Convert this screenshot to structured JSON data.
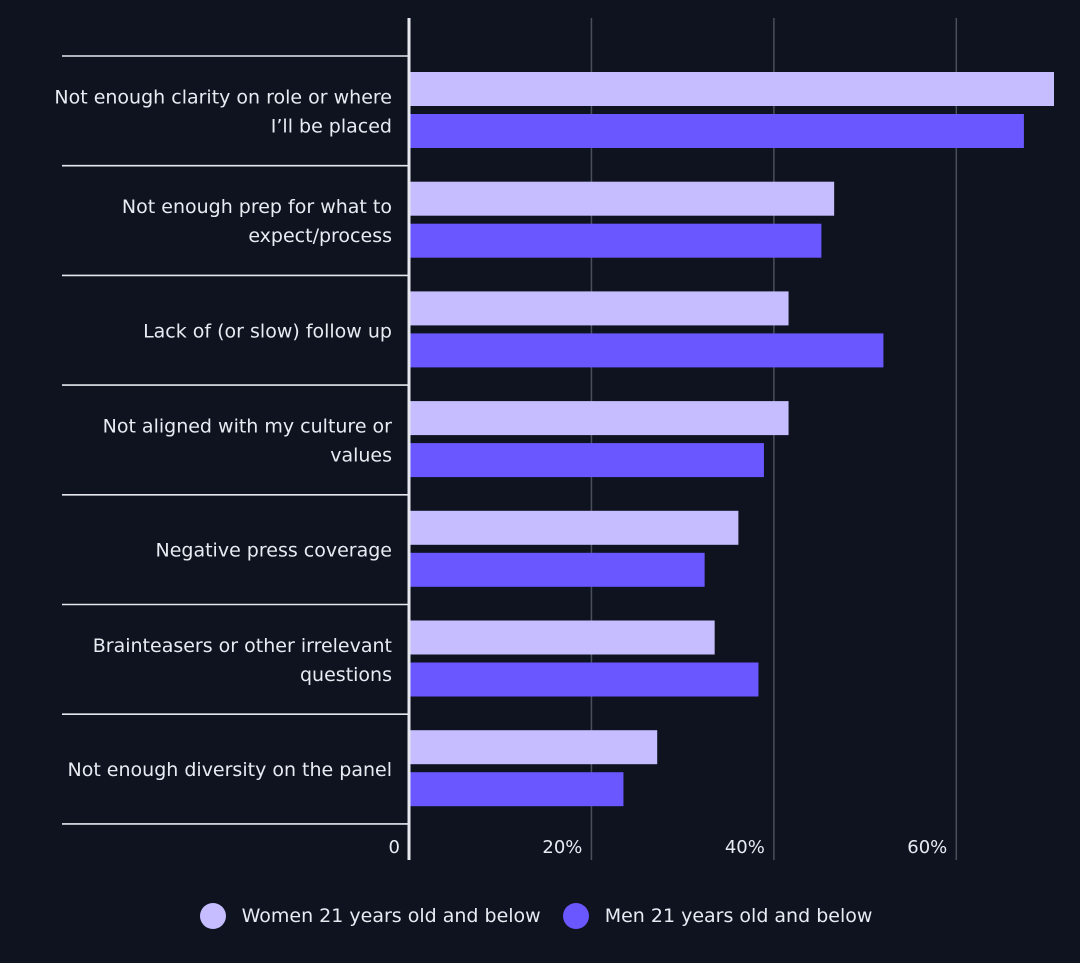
{
  "colors": {
    "background": "#0e131f",
    "women": "#c5bdff",
    "men": "#6b57ff",
    "text": "#e8ebf2",
    "grid": "#4a4f5c",
    "separator": "#e6e8ee"
  },
  "legend": {
    "women_label": "Women 21 years old and below",
    "men_label": "Men 21 years old and below"
  },
  "chart_data": {
    "type": "bar",
    "orientation": "horizontal",
    "title": "",
    "xlabel": "",
    "ylabel": "",
    "categories": [
      [
        "Not enough clarity on role or where",
        "I’ll be placed"
      ],
      [
        "Not enough prep for what to",
        "expect/process"
      ],
      [
        "Lack of (or slow) follow up"
      ],
      [
        "Not aligned with my culture or",
        "values"
      ],
      [
        "Negative press coverage"
      ],
      [
        "Brainteasers or other irrelevant",
        "questions"
      ],
      [
        "Not enough diversity on the panel"
      ]
    ],
    "series": [
      {
        "name": "Women 21 years old and below",
        "values": [
          70.6,
          46.5,
          41.5,
          41.5,
          36.0,
          33.4,
          27.1
        ]
      },
      {
        "name": "Men 21 years old and below",
        "values": [
          67.3,
          45.1,
          51.9,
          38.8,
          32.3,
          38.2,
          23.4
        ]
      }
    ],
    "xlim": [
      0,
      70.6
    ],
    "xticks": [
      {
        "value": 0,
        "label": "0"
      },
      {
        "value": 20,
        "label": "20%"
      },
      {
        "value": 40,
        "label": "40%"
      },
      {
        "value": 60,
        "label": "60%"
      }
    ],
    "grid": true,
    "legend_position": "bottom"
  }
}
